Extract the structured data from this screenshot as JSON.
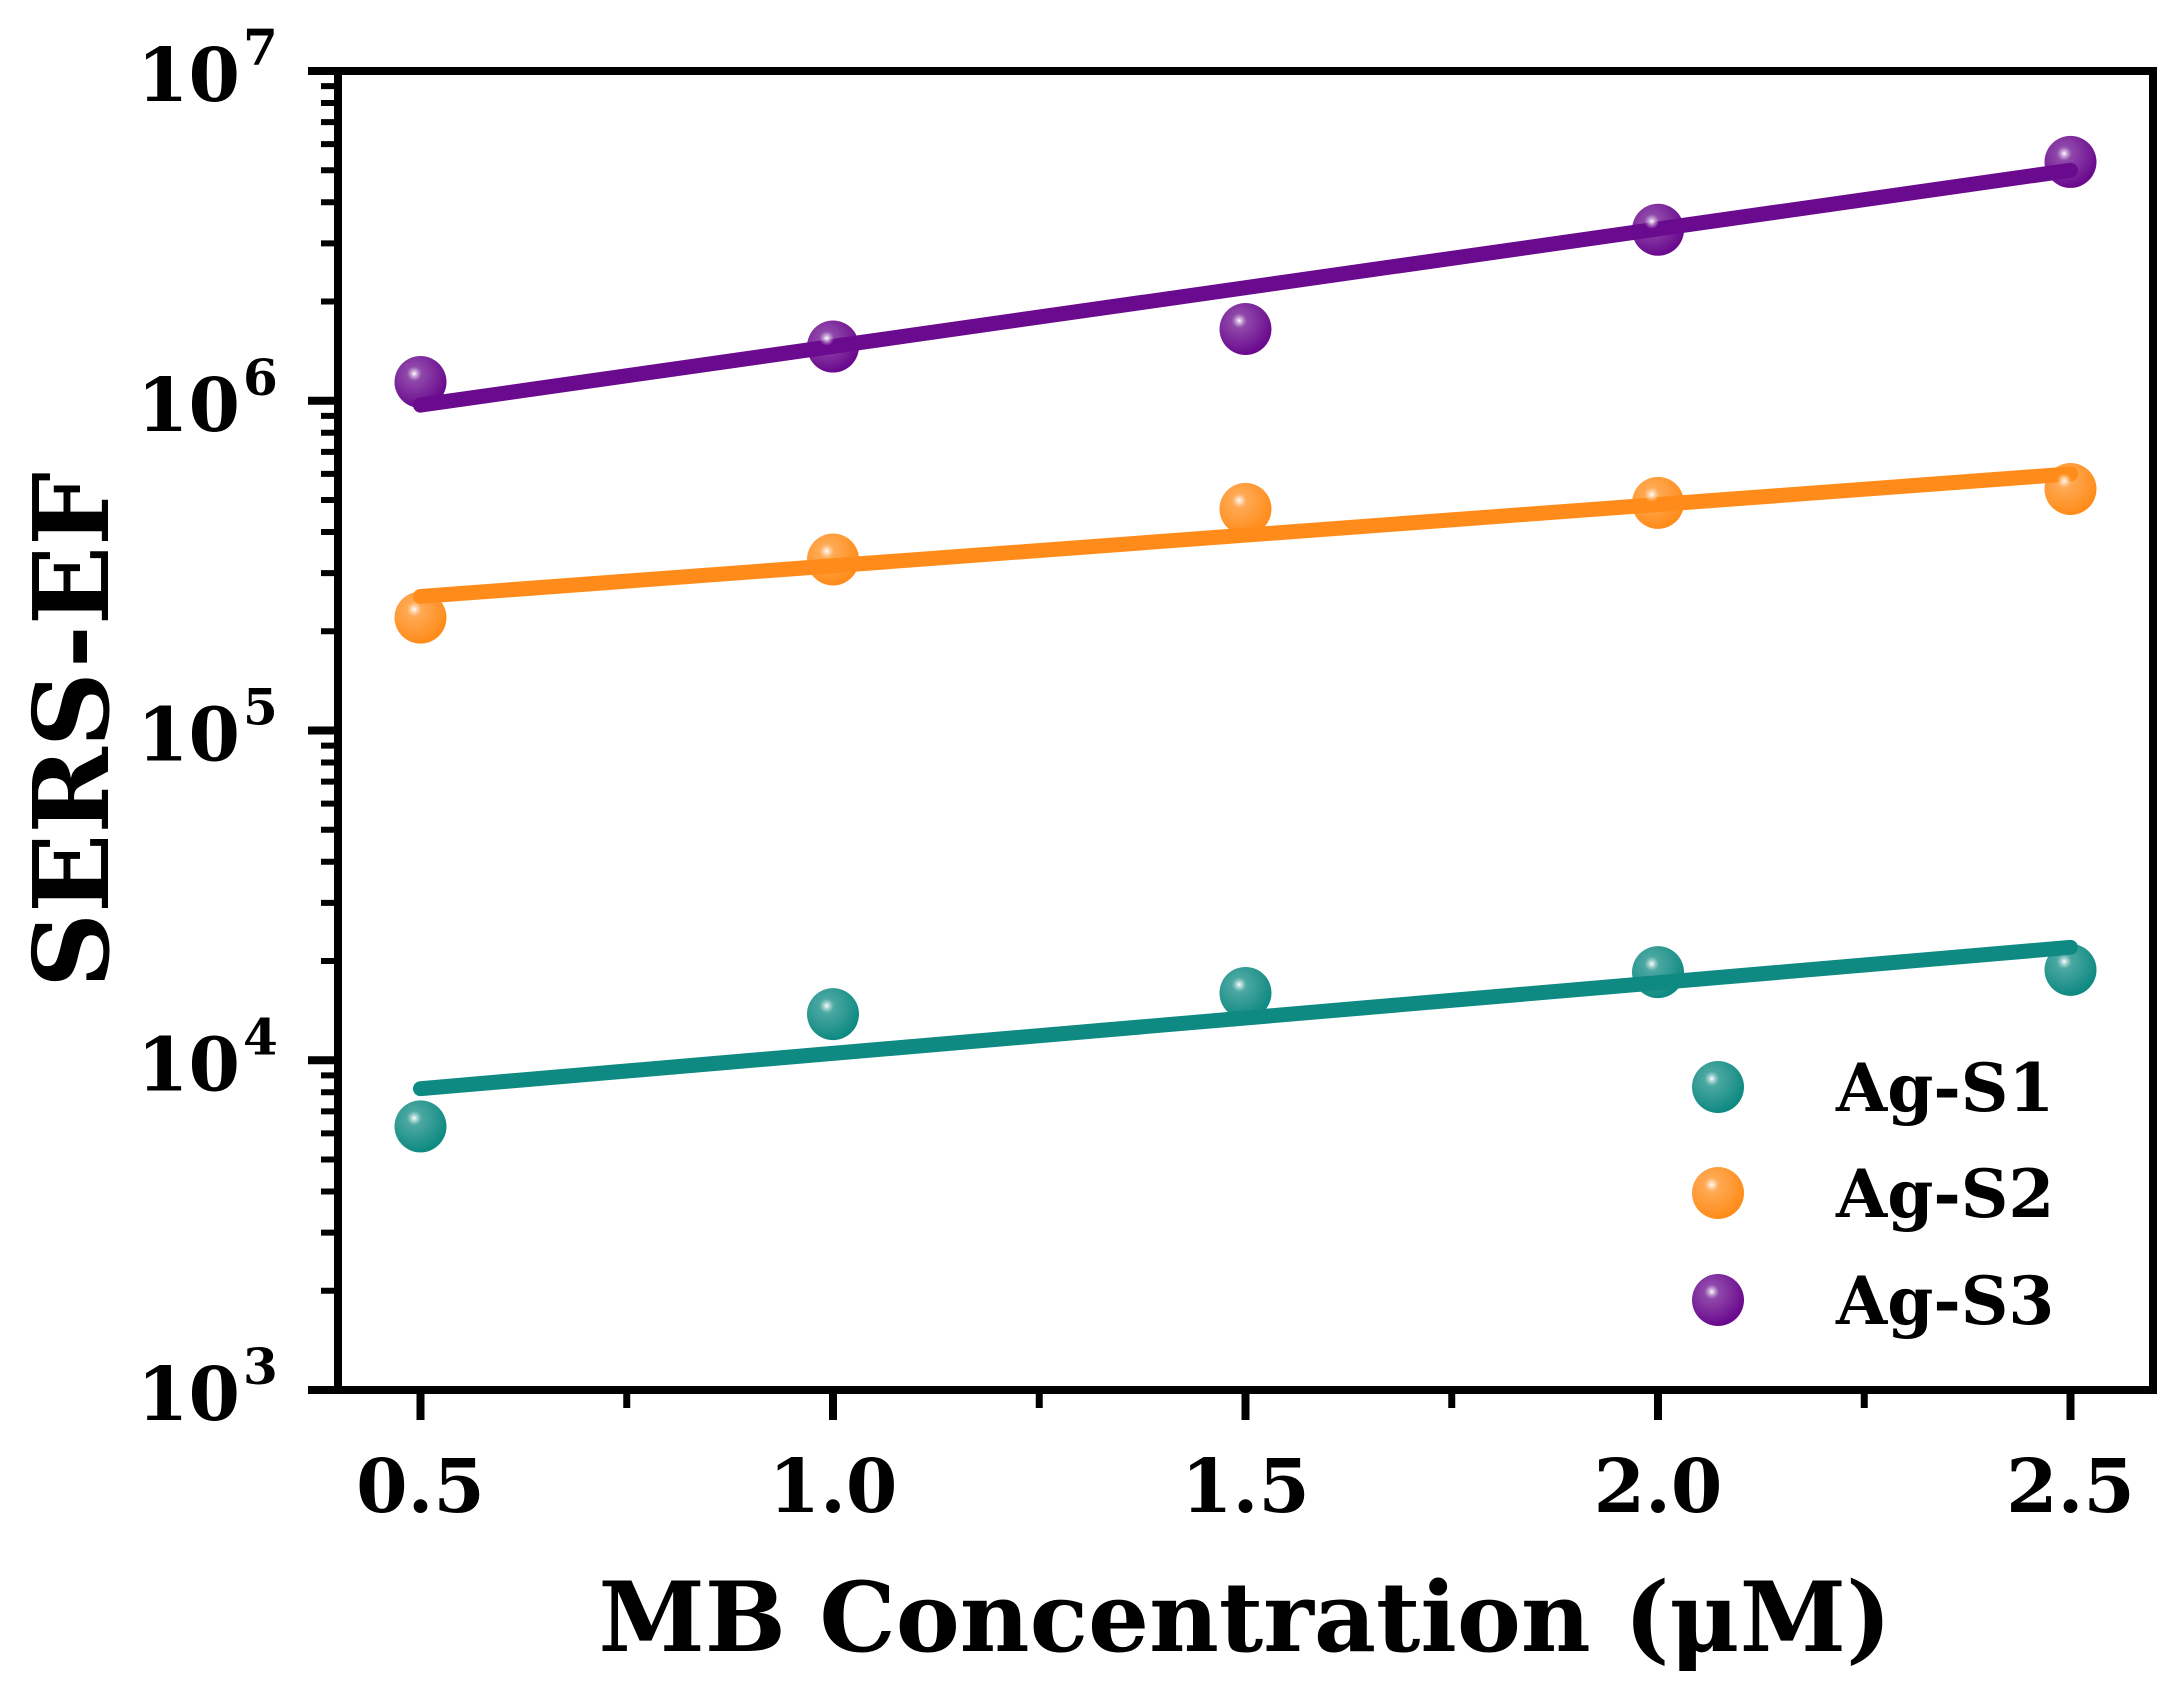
{
  "chart_data": {
    "type": "scatter",
    "xlabel": "MB Concentration (μM)",
    "ylabel": "SERS-EF",
    "xlim": [
      0.4,
      2.6
    ],
    "ylim": [
      1000,
      10000000
    ],
    "yscale": "log",
    "x_ticks": [
      0.5,
      1.0,
      1.5,
      2.0,
      2.5
    ],
    "x_tick_labels": [
      "0.5",
      "1.0",
      "1.5",
      "2.0",
      "2.5"
    ],
    "x_minor_ticks": [
      0.75,
      1.25,
      1.75,
      2.25
    ],
    "y_ticks": [
      {
        "base": "10",
        "exp": "3",
        "value": 1000
      },
      {
        "base": "10",
        "exp": "4",
        "value": 10000
      },
      {
        "base": "10",
        "exp": "5",
        "value": 100000
      },
      {
        "base": "10",
        "exp": "6",
        "value": 1000000
      },
      {
        "base": "10",
        "exp": "7",
        "value": 10000000
      }
    ],
    "legend_position": "bottom-right",
    "grid": false,
    "series": [
      {
        "name": "Ag-S1",
        "color": "#0f8a82",
        "x": [
          0.5,
          1.0,
          1.5,
          2.0,
          2.5
        ],
        "y": [
          6300,
          13800,
          16000,
          18500,
          18800
        ],
        "fit": [
          8200,
          22000
        ]
      },
      {
        "name": "Ag-S2",
        "color": "#ff8c1a",
        "x": [
          0.5,
          1.0,
          1.5,
          2.0,
          2.5
        ],
        "y": [
          220000,
          330000,
          470000,
          490000,
          540000
        ],
        "fit": [
          255000,
          600000
        ]
      },
      {
        "name": "Ag-S3",
        "color": "#6a0a8e",
        "x": [
          0.5,
          1.0,
          1.5,
          2.0,
          2.5
        ],
        "y": [
          1140000,
          1460000,
          1650000,
          3300000,
          5300000
        ],
        "fit": [
          970000,
          5000000
        ]
      }
    ]
  }
}
